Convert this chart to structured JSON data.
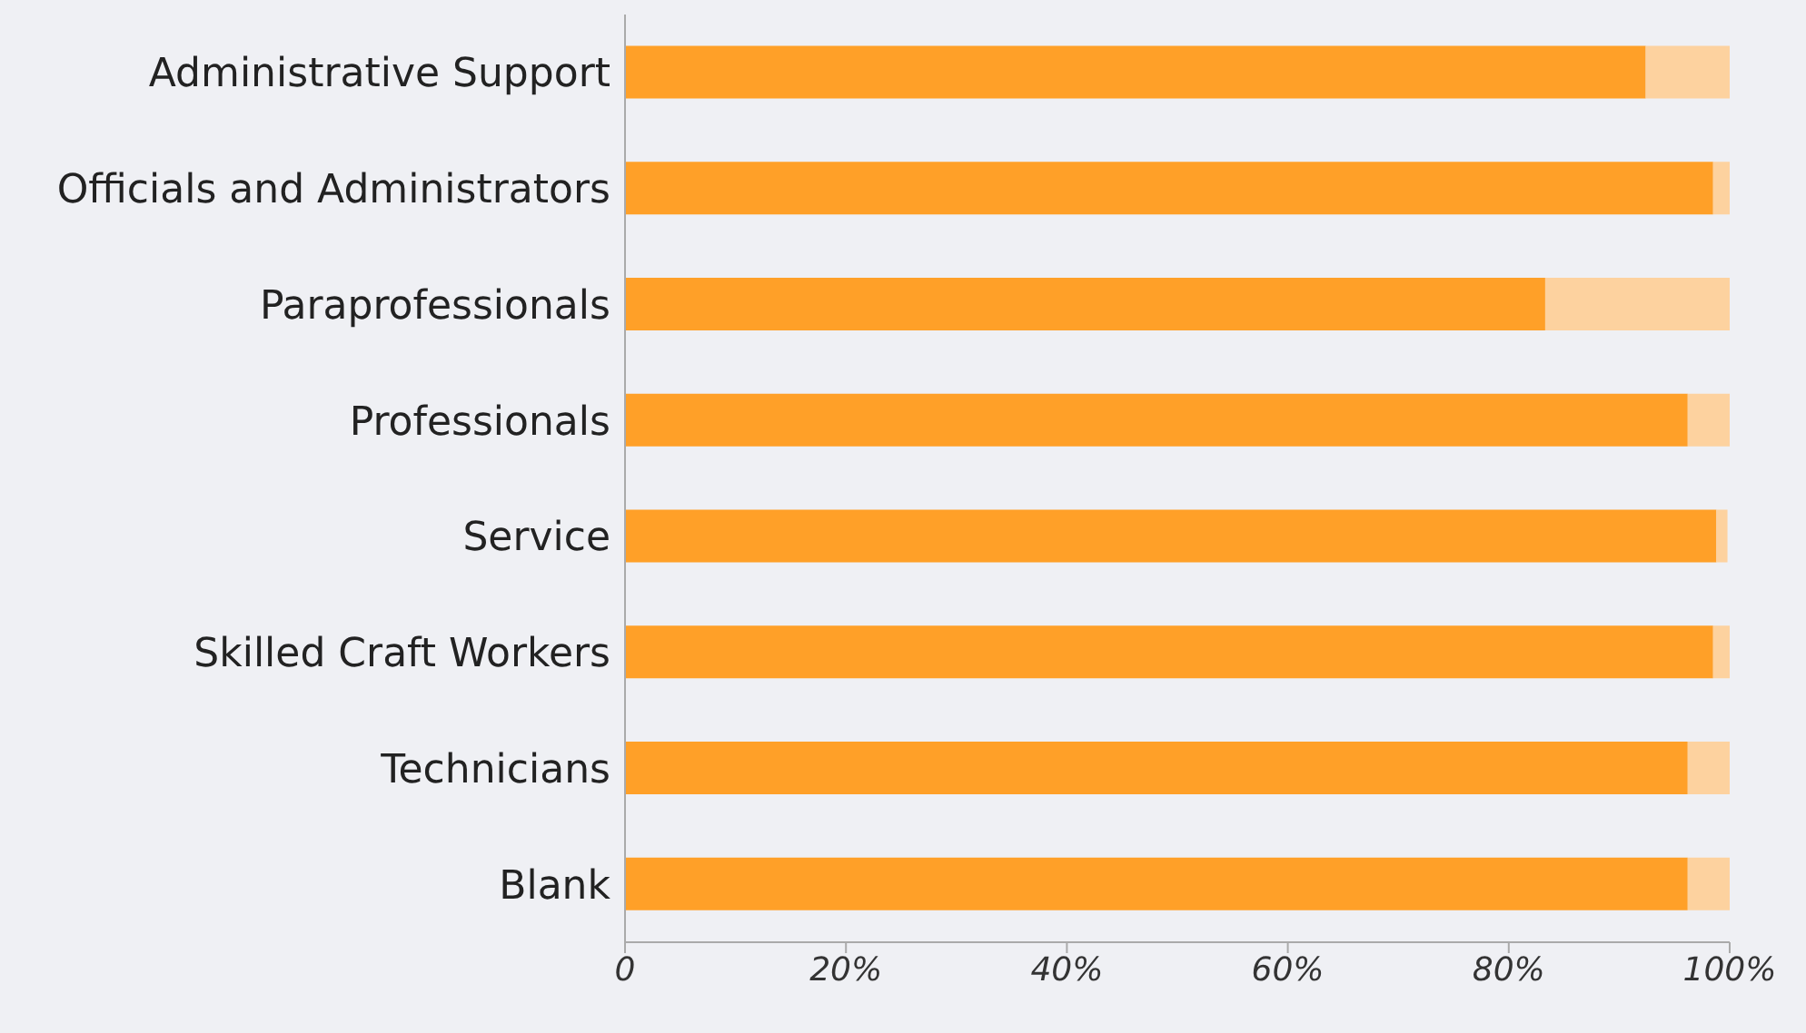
{
  "chart_data": {
    "type": "bar",
    "orientation": "horizontal",
    "stacked": true,
    "categories": [
      "Administrative Support",
      "Officials and Administrators",
      "Paraprofessionals",
      "Professionals",
      "Service",
      "Skilled Craft Workers",
      "Technicians",
      "Blank"
    ],
    "series": [
      {
        "color": "#ffa028",
        "values": [
          92.4,
          98.5,
          83.3,
          96.2,
          98.8,
          98.5,
          96.2,
          96.2
        ]
      },
      {
        "color": "#fdd29f",
        "values": [
          7.6,
          1.5,
          16.7,
          3.8,
          1.0,
          1.5,
          4.1,
          3.8
        ]
      }
    ],
    "xlim": [
      0,
      100
    ],
    "xticks": [
      0,
      {
        "value": 20,
        "label": "20%"
      },
      {
        "value": 40,
        "label": "40%"
      },
      {
        "value": 60,
        "label": "60%"
      },
      {
        "value": 80,
        "label": "80%"
      },
      {
        "value": 100,
        "label": "100%"
      }
    ],
    "grid": false,
    "legend": false
  }
}
